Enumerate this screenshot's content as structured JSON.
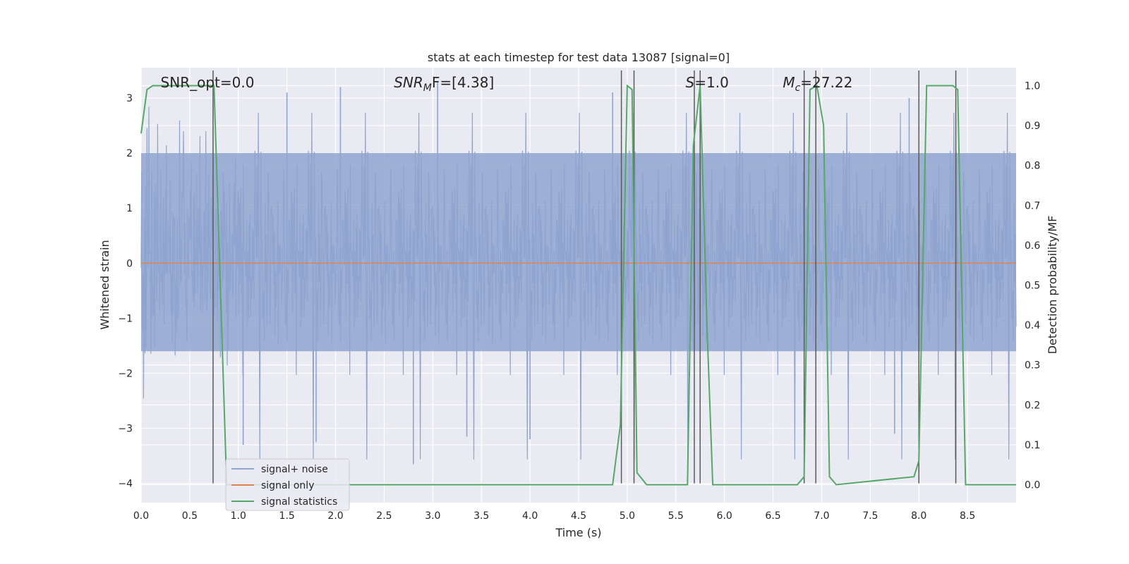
{
  "chart_data": {
    "type": "line",
    "title": "stats at each timestep for test data 13087 [signal=0]",
    "xlabel": "Time (s)",
    "ylabel": "Whitened strain",
    "y2label": "Detection probability/MF",
    "xlim": [
      0,
      9
    ],
    "ylim": [
      -4.35,
      3.55
    ],
    "y2lim": [
      -0.045,
      1.045
    ],
    "xticks": [
      0,
      0.5,
      1,
      1.5,
      2,
      2.5,
      3,
      3.5,
      4,
      4.5,
      5,
      5.5,
      6,
      6.5,
      7,
      7.5,
      8,
      8.5
    ],
    "xtick_labels": [
      "0.0",
      "0.5",
      "1.0",
      "1.5",
      "2.0",
      "2.5",
      "3.0",
      "3.5",
      "4.0",
      "4.5",
      "5.0",
      "5.5",
      "6.0",
      "6.5",
      "7.0",
      "7.5",
      "8.0",
      "8.5"
    ],
    "yticks": [
      -4,
      -3,
      -2,
      -1,
      0,
      1,
      2,
      3
    ],
    "ytick_labels": [
      "−4",
      "−3",
      "−2",
      "−1",
      "0",
      "1",
      "2",
      "3"
    ],
    "y2ticks": [
      0,
      0.1,
      0.2,
      0.3,
      0.4,
      0.5,
      0.6,
      0.7,
      0.8,
      0.9,
      1.0
    ],
    "y2tick_labels": [
      "0.0",
      "0.1",
      "0.2",
      "0.3",
      "0.4",
      "0.5",
      "0.6",
      "0.7",
      "0.8",
      "0.9",
      "1.0"
    ],
    "grid": true,
    "legend_position": "bottom-left",
    "annotations": [
      {
        "text": "SNR_opt=0.0",
        "x": 0.2
      },
      {
        "text": "SNR",
        "sub": "M",
        "rest": "F=[4.38]",
        "x": 2.6
      },
      {
        "text": "S",
        "rest": "=1.0",
        "x": 5.6
      },
      {
        "text": "M",
        "sub": "c",
        "rest": "=27.22",
        "x": 6.6
      }
    ],
    "series": [
      {
        "name": "signal+ noise",
        "color": "#8fa4cf",
        "kind": "noise",
        "x_range": [
          0,
          9
        ],
        "envelope": {
          "typical_range": [
            -1.6,
            2.0
          ],
          "peaks_max": 3.3,
          "troughs_min": -3.65,
          "notable_peaks": [
            [
              2.05,
              3.2
            ],
            [
              3.05,
              3.3
            ],
            [
              1.5,
              3.1
            ],
            [
              4.85,
              3.1
            ],
            [
              7.9,
              3.0
            ]
          ],
          "notable_troughs": [
            [
              2.8,
              -3.65
            ],
            [
              1.05,
              -3.3
            ],
            [
              1.8,
              -3.25
            ],
            [
              3.35,
              -3.15
            ],
            [
              4.0,
              -3.2
            ],
            [
              7.75,
              -3.1
            ]
          ]
        }
      },
      {
        "name": "signal only",
        "color": "#dd8452",
        "x": [
          0,
          9
        ],
        "y": [
          0,
          0
        ]
      },
      {
        "name": "signal statistics",
        "color": "#55a868",
        "axis": "right",
        "x": [
          0,
          0.06,
          0.12,
          0.7,
          0.75,
          0.88,
          4.85,
          4.93,
          5.0,
          5.05,
          5.1,
          5.2,
          5.62,
          5.68,
          5.75,
          5.82,
          5.88,
          6.75,
          6.82,
          6.88,
          6.95,
          7.02,
          7.08,
          7.15,
          7.95,
          8.0,
          8.08,
          8.35,
          8.4,
          8.48,
          8.5,
          9.0
        ],
        "y": [
          0.88,
          0.99,
          1.0,
          1.0,
          1.0,
          0.0,
          0.0,
          0.15,
          1.0,
          0.99,
          0.03,
          0.0,
          0.0,
          0.85,
          1.0,
          0.4,
          0.0,
          0.0,
          0.02,
          0.99,
          1.0,
          0.9,
          0.02,
          0.0,
          0.02,
          0.06,
          1.0,
          1.0,
          0.99,
          0.0,
          0.0,
          0.0
        ]
      }
    ],
    "vertical_lines": {
      "color": "#5a5a5a",
      "x": [
        0.74,
        4.94,
        5.07,
        5.69,
        5.75,
        6.82,
        6.94,
        8.0,
        8.38
      ],
      "y_from": -4.0,
      "y_to": 3.5
    }
  }
}
